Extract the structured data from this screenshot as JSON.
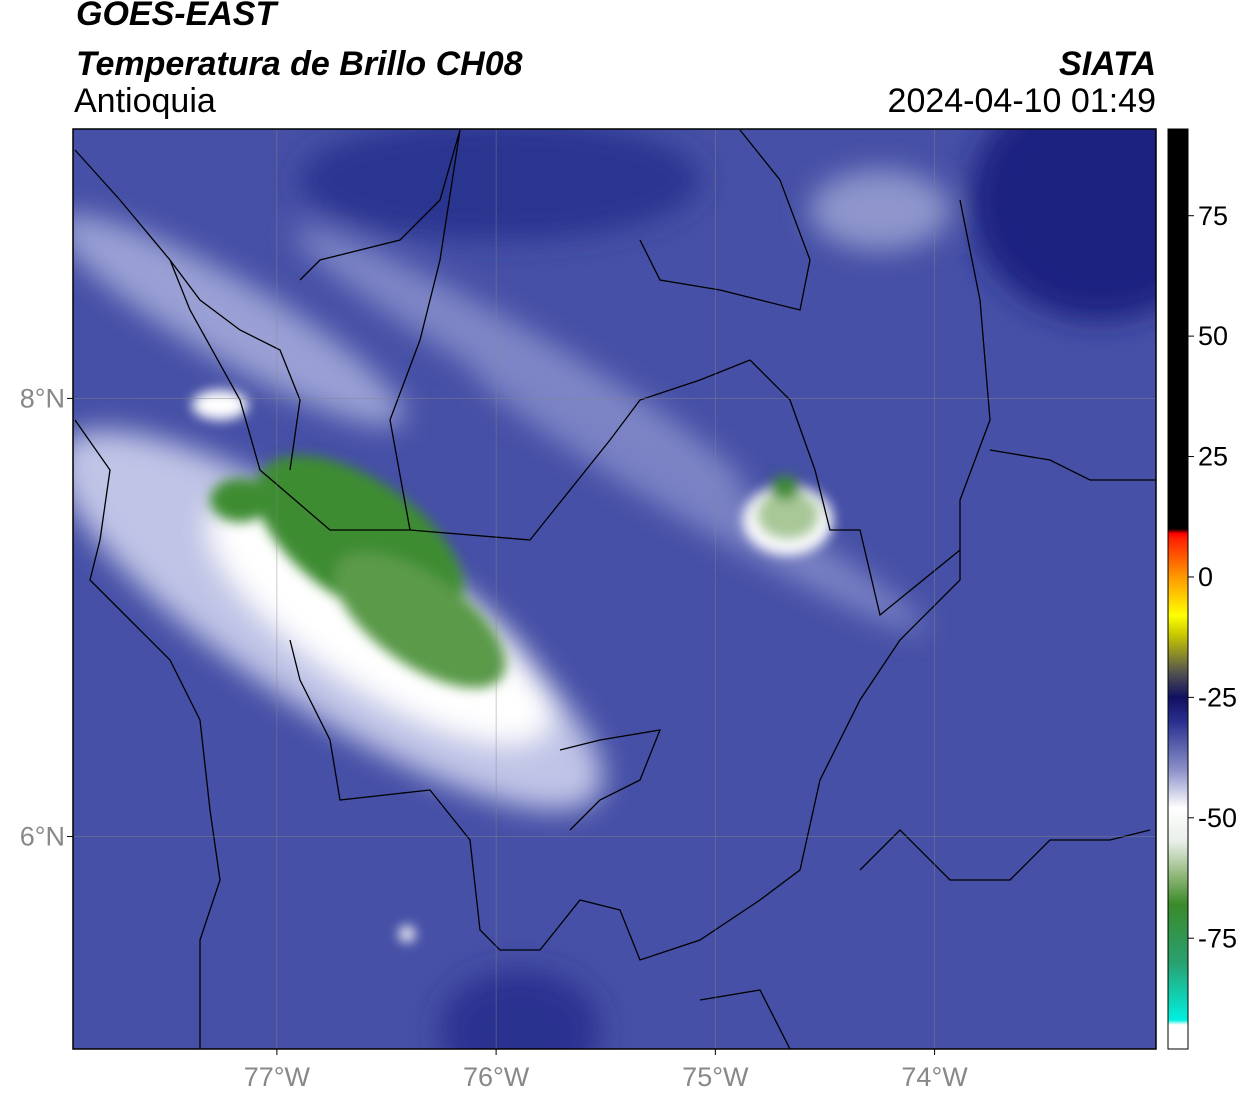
{
  "chart_data": {
    "type": "map",
    "title": "GOES-EAST",
    "subtitle": "Temperatura de Brillo CH08",
    "region": "Antioquia",
    "source": "SIATA",
    "datetime": "2024-04-10 01:49",
    "xlim": [
      -77.93,
      -72.99
    ],
    "ylim": [
      5.03,
      9.23
    ],
    "xticks": [
      {
        "value": -77,
        "label": "77°W"
      },
      {
        "value": -76,
        "label": "76°W"
      },
      {
        "value": -75,
        "label": "75°W"
      },
      {
        "value": -74,
        "label": "74°W"
      }
    ],
    "yticks": [
      {
        "value": 6,
        "label": "6°N"
      },
      {
        "value": 8,
        "label": "8°N"
      }
    ],
    "grid": true,
    "colorbar": {
      "range": [
        -98,
        93
      ],
      "ticks": [
        -75,
        -50,
        -25,
        0,
        25,
        50,
        75
      ],
      "stops": [
        {
          "value": -98,
          "color": "#ffffff"
        },
        {
          "value": -93,
          "color": "#ffffff"
        },
        {
          "value": -92,
          "color": "#00f0e0"
        },
        {
          "value": -80,
          "color": "#2aa070"
        },
        {
          "value": -68,
          "color": "#3a8a2a"
        },
        {
          "value": -62,
          "color": "#8fb878"
        },
        {
          "value": -55,
          "color": "#e8eee8"
        },
        {
          "value": -48,
          "color": "#ffffff"
        },
        {
          "value": -40,
          "color": "#8a90c8"
        },
        {
          "value": -30,
          "color": "#2a2f8f"
        },
        {
          "value": -25,
          "color": "#101060"
        },
        {
          "value": -20,
          "color": "#505050"
        },
        {
          "value": -12,
          "color": "#c8c800"
        },
        {
          "value": -8,
          "color": "#ffff00"
        },
        {
          "value": 0,
          "color": "#ff9900"
        },
        {
          "value": 8,
          "color": "#ff2000"
        },
        {
          "value": 9,
          "color": "#ff0000"
        },
        {
          "value": 10,
          "color": "#000000"
        },
        {
          "value": 93,
          "color": "#000000"
        }
      ]
    }
  }
}
